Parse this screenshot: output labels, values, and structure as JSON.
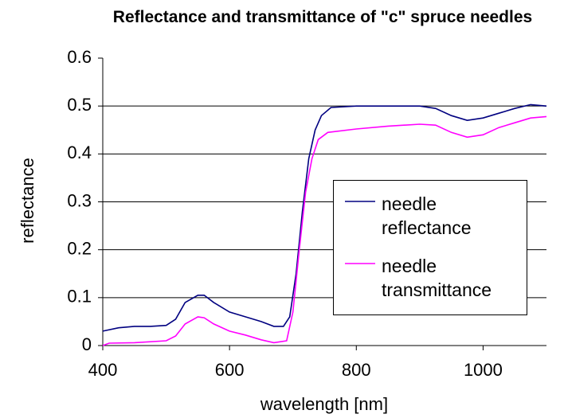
{
  "chart_data": {
    "type": "line",
    "title": "Reflectance and transmittance of \"c\" spruce needles",
    "x_label": "wavelength [nm]",
    "y_label": "reflectance",
    "xlim": [
      400,
      1100
    ],
    "xticks": [
      400,
      600,
      800,
      1000
    ],
    "ylim": [
      0,
      0.6
    ],
    "yticks": [
      0,
      0.1,
      0.2,
      0.3,
      0.4,
      0.5,
      0.6
    ],
    "grid": true,
    "legend": "right",
    "series": [
      {
        "name": "needle reflectance",
        "color": "#000080",
        "x": [
          400,
          425,
          450,
          475,
          500,
          515,
          530,
          550,
          560,
          575,
          600,
          625,
          650,
          670,
          685,
          695,
          705,
          715,
          725,
          735,
          745,
          760,
          800,
          850,
          900,
          925,
          950,
          975,
          1000,
          1025,
          1050,
          1075,
          1100
        ],
        "values": [
          0.03,
          0.037,
          0.04,
          0.04,
          0.042,
          0.055,
          0.09,
          0.105,
          0.105,
          0.09,
          0.07,
          0.06,
          0.05,
          0.04,
          0.04,
          0.06,
          0.15,
          0.28,
          0.39,
          0.45,
          0.48,
          0.497,
          0.5,
          0.5,
          0.5,
          0.495,
          0.48,
          0.47,
          0.475,
          0.485,
          0.495,
          0.503,
          0.5
        ]
      },
      {
        "name": "needle transmittance",
        "color": "#ff00ff",
        "x": [
          400,
          410,
          450,
          500,
          515,
          530,
          550,
          560,
          575,
          600,
          625,
          650,
          670,
          690,
          700,
          710,
          720,
          730,
          740,
          755,
          800,
          850,
          900,
          925,
          950,
          975,
          1000,
          1025,
          1050,
          1075,
          1100
        ],
        "values": [
          0.0,
          0.005,
          0.006,
          0.01,
          0.02,
          0.045,
          0.06,
          0.058,
          0.045,
          0.03,
          0.022,
          0.012,
          0.006,
          0.01,
          0.07,
          0.2,
          0.32,
          0.39,
          0.43,
          0.445,
          0.452,
          0.458,
          0.462,
          0.46,
          0.445,
          0.435,
          0.44,
          0.455,
          0.465,
          0.475,
          0.478
        ]
      }
    ]
  }
}
